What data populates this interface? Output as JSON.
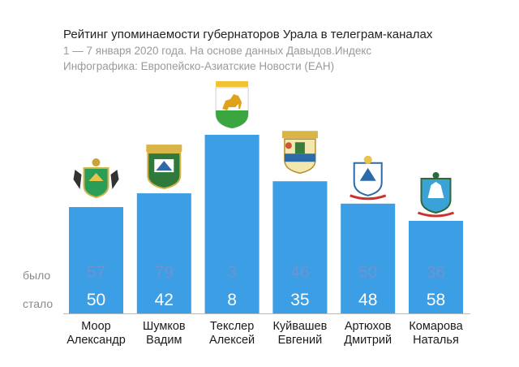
{
  "header": {
    "title": "Рейтинг упоминаемости губернаторов Урала в телеграм-каналах",
    "subtitle1": "1 — 7 января 2020 года. На основе данных Давыдов.Индекс",
    "subtitle2": "Инфографика: Европейско-Азиатские Новости (ЕАН)"
  },
  "row_labels": {
    "before": "было",
    "after": "стало"
  },
  "colors": {
    "bar": "#3c9ee5",
    "before_text": "#6f93cf",
    "after_text": "#ffffff",
    "axis": "#bbbbbb"
  },
  "chart_data": {
    "type": "bar",
    "title": "Рейтинг упоминаемости губернаторов Урала в телеграм-каналах",
    "categories": [
      "Моор Александр",
      "Шумков Вадим",
      "Текслер Алексей",
      "Куйвашев Евгений",
      "Артюхов Дмитрий",
      "Комарова Наталья"
    ],
    "name_lines": [
      [
        "Моор",
        "Александр"
      ],
      [
        "Шумков",
        "Вадим"
      ],
      [
        "Текслер",
        "Алексей"
      ],
      [
        "Куйвашев",
        "Евгений"
      ],
      [
        "Артюхов",
        "Дмитрий"
      ],
      [
        "Комарова",
        "Наталья"
      ]
    ],
    "series": [
      {
        "name": "было",
        "values": [
          57,
          79,
          3,
          46,
          50,
          36
        ]
      },
      {
        "name": "стало",
        "values": [
          50,
          42,
          8,
          35,
          48,
          58
        ]
      }
    ],
    "emblems": [
      "tyumen-oblast-coat-of-arms",
      "kurgan-oblast-coat-of-arms",
      "chelyabinsk-oblast-coat-of-arms",
      "sverdlovsk-oblast-coat-of-arms",
      "yamalo-nenets-coat-of-arms",
      "khanty-mansi-coat-of-arms"
    ],
    "note": "rating position; lower value = taller bar",
    "xlabel": "",
    "ylabel": ""
  }
}
